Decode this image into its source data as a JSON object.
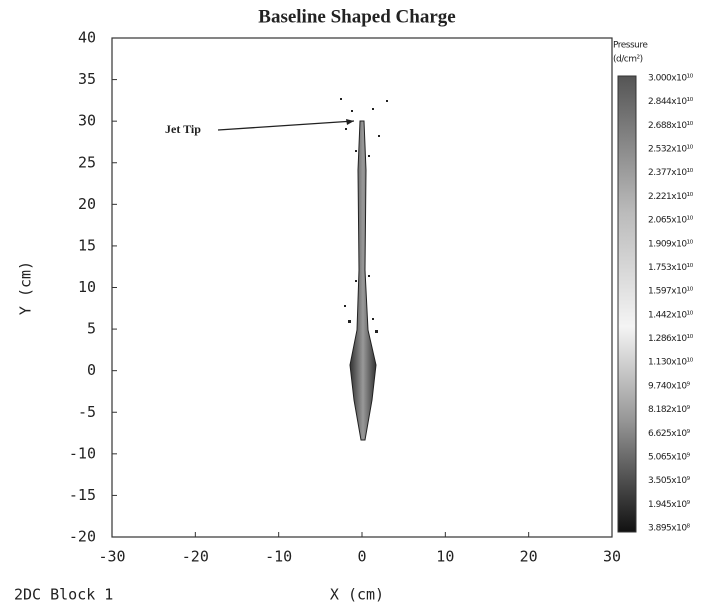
{
  "chart_data": {
    "type": "field",
    "title": "Baseline Shaped Charge",
    "x_label": "X (cm)",
    "y_label": "Y (cm)",
    "footer": "2DC Block 1",
    "annotation": "Jet Tip",
    "xlim": [
      -30,
      30
    ],
    "xticks": [
      -30,
      -20,
      -10,
      0,
      10,
      20,
      30
    ],
    "ylim": [
      -20,
      40
    ],
    "yticks": [
      -20,
      -15,
      -10,
      -5,
      0,
      5,
      10,
      15,
      20,
      25,
      30,
      35,
      40
    ],
    "grid": false,
    "colorbar": {
      "title": "Pressure",
      "unit": "(d/cm²)",
      "labels": [
        "3.000x10¹⁰",
        "2.844x10¹⁰",
        "2.688x10¹⁰",
        "2.532x10¹⁰",
        "2.377x10¹⁰",
        "2.221x10¹⁰",
        "2.065x10¹⁰",
        "1.909x10¹⁰",
        "1.753x10¹⁰",
        "1.597x10¹⁰",
        "1.442x10¹⁰",
        "1.286x10¹⁰",
        "1.130x10¹⁰",
        "9.740x10⁹",
        "8.182x10⁹",
        "6.625x10⁹",
        "5.065x10⁹",
        "3.505x10⁹",
        "1.945x10⁹",
        "3.895x10⁸"
      ]
    }
  }
}
